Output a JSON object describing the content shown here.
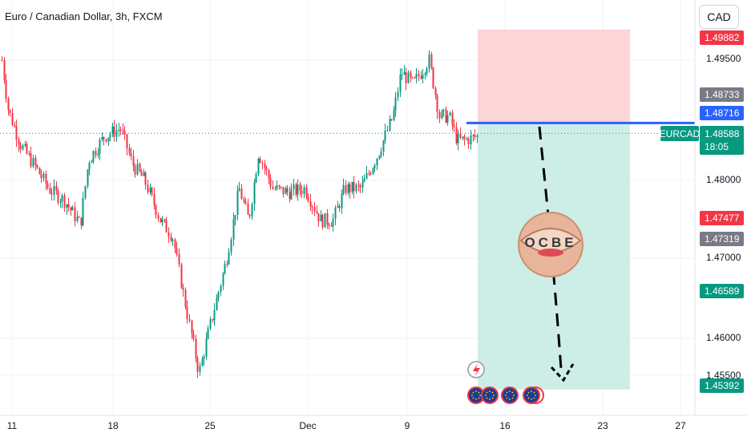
{
  "header": {
    "title": "Euro / Canadian Dollar, 3h, FXCM",
    "currency_button": "CAD"
  },
  "colors": {
    "up": "#089981",
    "down": "#f23645",
    "stop_zone": "#fcd5d7",
    "target_zone": "#cdeee6",
    "entry_line": "#2962ff",
    "target_tag": "#089981",
    "stop_tag": "#f23645"
  },
  "chart_data": {
    "type": "candlestick",
    "symbol": "EURCAD",
    "timeframe": "3h",
    "source": "FXCM",
    "ylim": [
      1.449,
      1.5
    ],
    "y_ticks": [
      "1.49500",
      "1.48000",
      "1.47000",
      "1.46000",
      "1.45500"
    ],
    "x_ticks": [
      "11",
      "18",
      "25",
      "Dec",
      "9",
      "16",
      "23",
      "27"
    ],
    "current_price": "1.48588",
    "countdown": "18:05",
    "symbol_label": "EURCAD",
    "price_tags": [
      {
        "value": "1.49882",
        "role": "stop"
      },
      {
        "value": "1.48733",
        "role": "high"
      },
      {
        "value": "1.48716",
        "role": "entry"
      },
      {
        "value": "1.47477",
        "role": "down"
      },
      {
        "value": "1.47319",
        "role": "neutral"
      },
      {
        "value": "1.46589",
        "role": "target"
      },
      {
        "value": "1.45392",
        "role": "target"
      }
    ],
    "position": {
      "type": "short",
      "entry": 1.48716,
      "stop": 1.49882,
      "target": 1.45392
    },
    "watermark_text": "OCBE"
  }
}
